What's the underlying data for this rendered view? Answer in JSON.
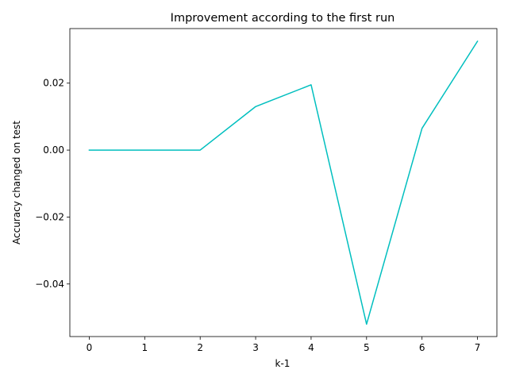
{
  "chart_data": {
    "type": "line",
    "title": "Improvement according to the first run",
    "xlabel": "k-1",
    "ylabel": "Accuracy changed on test",
    "x": [
      0,
      1,
      2,
      3,
      4,
      5,
      6,
      7
    ],
    "xticks": [
      "0",
      "1",
      "2",
      "3",
      "4",
      "5",
      "6",
      "7"
    ],
    "yticks": [
      -0.04,
      -0.02,
      0.0,
      0.02
    ],
    "ytick_labels": [
      "−0.04",
      "−0.02",
      "0.00",
      "0.02"
    ],
    "xlim": [
      -0.35,
      7.35
    ],
    "ylim": [
      -0.0557,
      0.0363
    ],
    "grid": false,
    "series": [
      {
        "values": [
          0.0,
          0.0,
          0.0,
          0.013,
          0.0195,
          -0.052,
          0.0065,
          0.0325
        ],
        "color": "#00bfbf"
      }
    ]
  }
}
